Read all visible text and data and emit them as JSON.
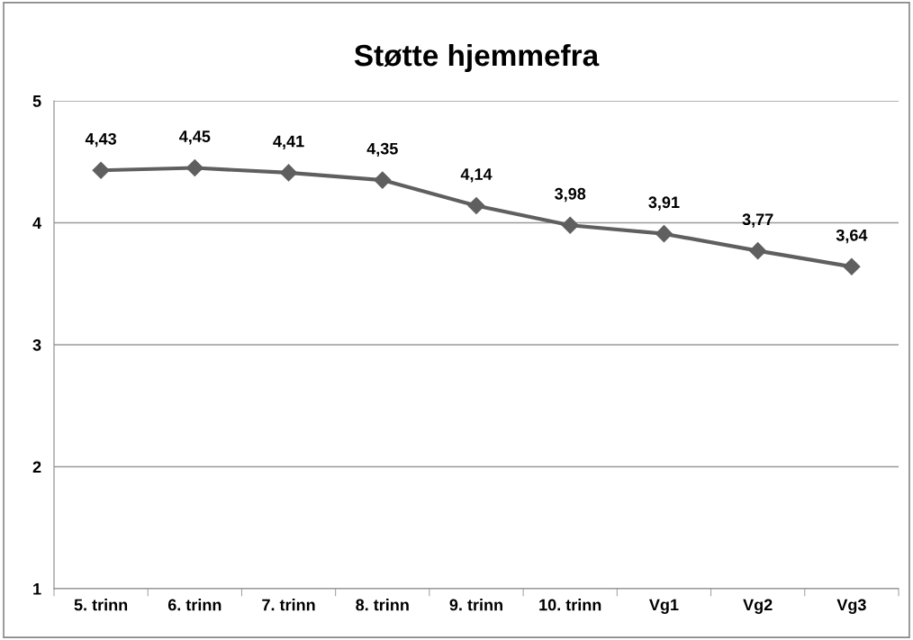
{
  "chart_data": {
    "type": "line",
    "title": "Støtte hjemmefra",
    "categories": [
      "5. trinn",
      "6. trinn",
      "7. trinn",
      "8. trinn",
      "9. trinn",
      "10. trinn",
      "Vg1",
      "Vg2",
      "Vg3"
    ],
    "series": [
      {
        "color": "#5f5f5f",
        "values": [
          4.43,
          4.45,
          4.41,
          4.35,
          4.14,
          3.98,
          3.91,
          3.77,
          3.64
        ],
        "value_labels": [
          "4,43",
          "4,45",
          "4,41",
          "4,35",
          "4,14",
          "3,98",
          "3,91",
          "3,77",
          "3,64"
        ]
      }
    ],
    "ylim": [
      1,
      5
    ],
    "yticks": [
      1,
      2,
      3,
      4,
      5
    ],
    "grid": "y",
    "marker": "diamond",
    "line_style": "solid",
    "legend": false
  }
}
